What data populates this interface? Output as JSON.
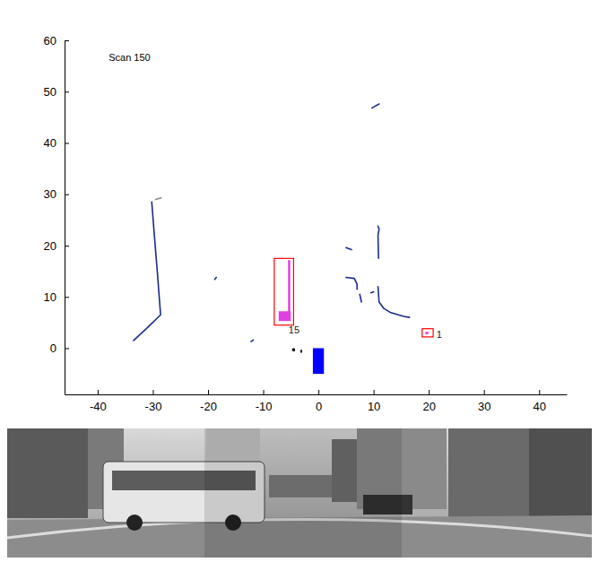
{
  "chart_data": {
    "type": "scatter",
    "annotations": [
      {
        "text": "Scan 150",
        "x": -38,
        "y": 56
      }
    ],
    "xlim": [
      -46,
      45
    ],
    "ylim": [
      -9,
      60
    ],
    "xticks": [
      -40,
      -30,
      -20,
      -10,
      0,
      10,
      20,
      30,
      40
    ],
    "yticks": [
      0,
      10,
      20,
      30,
      40,
      50,
      60
    ],
    "grid": false,
    "series": [
      {
        "type": "line",
        "color": "#1c2a8c",
        "line_style": "solid",
        "marker": "none",
        "x": [
          -33.5,
          -31,
          -28.6,
          -29.2,
          -29.8,
          -30.2
        ],
        "values": [
          1.5,
          4,
          6.5,
          15,
          23,
          28.5
        ]
      },
      {
        "type": "line",
        "color": "#888888",
        "line_style": "solid",
        "marker": "none",
        "x": [
          -29.5,
          -28.5
        ],
        "values": [
          29,
          29.3
        ]
      },
      {
        "type": "line",
        "color": "#1c2a8c",
        "line_style": "solid",
        "marker": "none",
        "x": [
          -18.8,
          -18.5
        ],
        "values": [
          13.4,
          13.8
        ]
      },
      {
        "type": "line",
        "color": "#1c2a8c",
        "line_style": "solid",
        "marker": "none",
        "x": [
          -12.2,
          -11.8
        ],
        "values": [
          1.3,
          1.6
        ]
      },
      {
        "type": "line",
        "color": "#1c2a8c",
        "line_style": "solid",
        "marker": "none",
        "x": [
          5,
          6
        ],
        "values": [
          19.6,
          19.2
        ]
      },
      {
        "type": "line",
        "color": "#1c2a8c",
        "line_style": "solid",
        "marker": "none",
        "x": [
          5,
          6.5,
          7,
          7
        ],
        "values": [
          13.8,
          13.6,
          12.5,
          11.5
        ]
      },
      {
        "type": "line",
        "color": "#1c2a8c",
        "line_style": "solid",
        "marker": "none",
        "x": [
          7.5,
          7.8
        ],
        "values": [
          10.5,
          9
        ]
      },
      {
        "type": "line",
        "color": "#1c2a8c",
        "line_style": "solid",
        "marker": "none",
        "x": [
          10.8,
          11,
          10.8,
          10.9
        ],
        "values": [
          23.8,
          23.2,
          22,
          17.5
        ]
      },
      {
        "type": "line",
        "color": "#1c2a8c",
        "line_style": "solid",
        "marker": "none",
        "x": [
          10.8,
          11,
          11.8,
          13,
          14.5,
          15.5,
          16.5
        ],
        "values": [
          12,
          9,
          7.8,
          7,
          6.5,
          6.2,
          6
        ]
      },
      {
        "type": "line",
        "color": "#1c2a8c",
        "line_style": "solid",
        "marker": "none",
        "x": [
          9.5,
          10
        ],
        "values": [
          10.8,
          11
        ]
      },
      {
        "type": "line",
        "color": "#1c2a8c",
        "line_style": "solid",
        "marker": "none",
        "x": [
          9.7,
          10,
          11
        ],
        "values": [
          46.8,
          47,
          47.6
        ]
      },
      {
        "type": "line",
        "color": "#e040e0",
        "line_style": "solid",
        "marker": "none",
        "x": [
          -5.3,
          -5.3
        ],
        "values": [
          7,
          17
        ]
      },
      {
        "type": "scatter",
        "color": "#000000",
        "marker": "point",
        "x": [
          -4.6,
          -4.4,
          -3.1
        ],
        "values": [
          -0.3,
          -0.3,
          -0.6
        ]
      }
    ],
    "tracks": [
      {
        "label": "15",
        "color": "#ff0000",
        "x": [
          -8,
          -4.5
        ],
        "y": [
          4.5,
          17.5
        ],
        "label_x": -5.4,
        "label_y": 3.3,
        "fill": {
          "color": "#e040e0",
          "x": [
            -7.2,
            -5
          ],
          "y": [
            5.3,
            7.2
          ]
        }
      },
      {
        "label": "1",
        "color": "#ff0000",
        "x": [
          18.8,
          20.8
        ],
        "y": [
          2.2,
          3.8
        ],
        "label_x": 21.4,
        "label_y": 2.6,
        "fill": {
          "color": "#e040e0",
          "x": [
            19.4,
            19.9
          ],
          "y": [
            2.7,
            3.2
          ]
        }
      }
    ],
    "vehicle": {
      "color": "#0000ff",
      "x": [
        -1,
        1
      ],
      "y": [
        -5,
        0
      ]
    }
  }
}
